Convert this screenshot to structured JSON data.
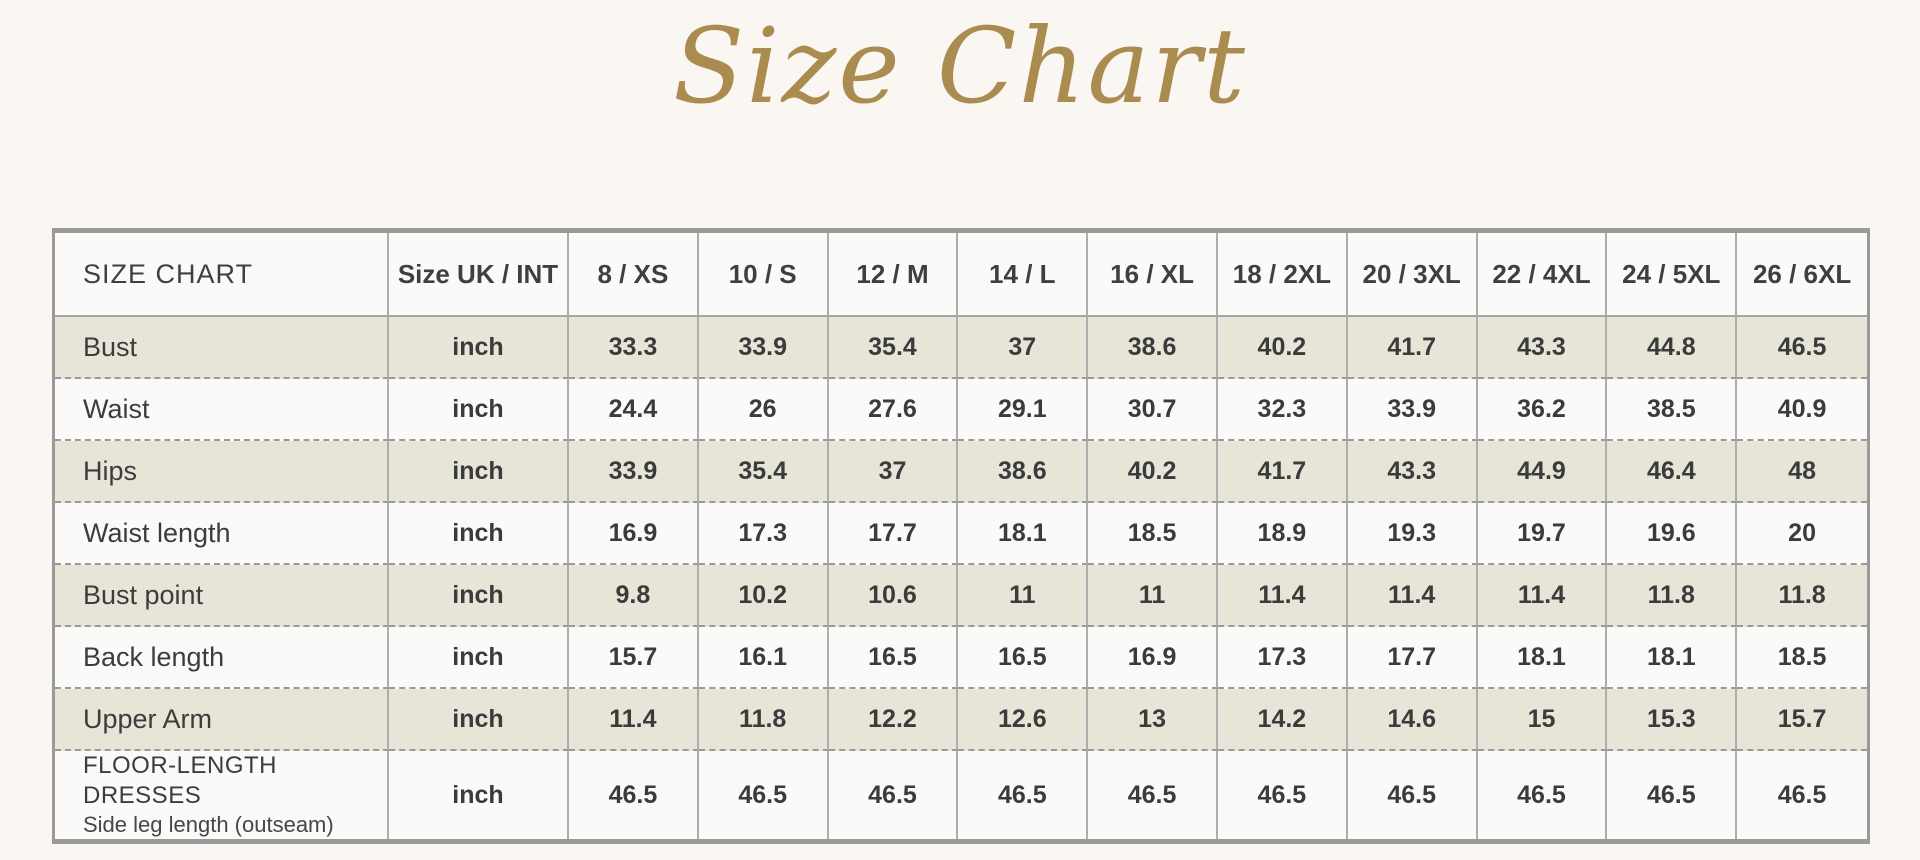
{
  "page": {
    "background_color": "#faf7f3",
    "accent_gold": "#ab8c50",
    "shaded_row_color": "#e6e5d8",
    "border_color": "#9a9a9a",
    "text_color": "#3b3b3b"
  },
  "chart_data": {
    "type": "table",
    "title": "Size Chart",
    "corner_label": "SIZE CHART",
    "unit_column_header": "Size UK / INT",
    "columns": [
      "SIZE CHART",
      "Size UK / INT",
      "8 / XS",
      "10 / S",
      "12 / M",
      "14 / L",
      "16 / XL",
      "18 / 2XL",
      "20 / 3XL",
      "22 / 4XL",
      "24 / 5XL",
      "26 / 6XL"
    ],
    "size_headers": [
      "8 / XS",
      "10 / S",
      "12 / M",
      "14 / L",
      "16 / XL",
      "18 / 2XL",
      "20 / 3XL",
      "22 / 4XL",
      "24 / 5XL",
      "26 / 6XL"
    ],
    "rows": [
      {
        "label": "Bust",
        "sublabel": "",
        "unit": "inch",
        "shaded": true,
        "values": [
          33.3,
          33.9,
          35.4,
          37,
          38.6,
          40.2,
          41.7,
          43.3,
          44.8,
          46.5
        ]
      },
      {
        "label": "Waist",
        "sublabel": "",
        "unit": "inch",
        "shaded": false,
        "values": [
          24.4,
          26,
          27.6,
          29.1,
          30.7,
          32.3,
          33.9,
          36.2,
          38.5,
          40.9
        ]
      },
      {
        "label": "Hips",
        "sublabel": "",
        "unit": "inch",
        "shaded": true,
        "values": [
          33.9,
          35.4,
          37,
          38.6,
          40.2,
          41.7,
          43.3,
          44.9,
          46.4,
          48
        ]
      },
      {
        "label": "Waist length",
        "sublabel": "",
        "unit": "inch",
        "shaded": false,
        "values": [
          16.9,
          17.3,
          17.7,
          18.1,
          18.5,
          18.9,
          19.3,
          19.7,
          19.6,
          20
        ]
      },
      {
        "label": "Bust point",
        "sublabel": "",
        "unit": "inch",
        "shaded": true,
        "values": [
          9.8,
          10.2,
          10.6,
          11,
          11,
          11.4,
          11.4,
          11.4,
          11.8,
          11.8
        ]
      },
      {
        "label": "Back length",
        "sublabel": "",
        "unit": "inch",
        "shaded": false,
        "values": [
          15.7,
          16.1,
          16.5,
          16.5,
          16.9,
          17.3,
          17.7,
          18.1,
          18.1,
          18.5
        ]
      },
      {
        "label": "Upper Arm",
        "sublabel": "",
        "unit": "inch",
        "shaded": true,
        "values": [
          11.4,
          11.8,
          12.2,
          12.6,
          13,
          14.2,
          14.6,
          15,
          15.3,
          15.7
        ]
      },
      {
        "label": "FLOOR-LENGTH DRESSES",
        "sublabel": "Side leg length (outseam)",
        "unit": "inch",
        "shaded": false,
        "values": [
          46.5,
          46.5,
          46.5,
          46.5,
          46.5,
          46.5,
          46.5,
          46.5,
          46.5,
          46.5
        ]
      }
    ]
  }
}
